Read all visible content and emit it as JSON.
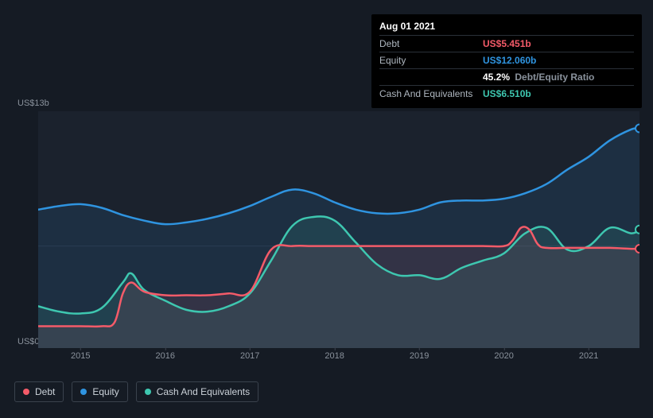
{
  "tooltip": {
    "date": "Aug 01 2021",
    "rows": [
      {
        "label": "Debt",
        "value": "US$5.451b",
        "color": "#f45b69"
      },
      {
        "label": "Equity",
        "value": "US$12.060b",
        "color": "#2f94e0"
      },
      {
        "label": "",
        "ratio_bold": "45.2%",
        "ratio_label": "Debt/Equity Ratio"
      },
      {
        "label": "Cash And Equivalents",
        "value": "US$6.510b",
        "color": "#3ec7b0"
      }
    ]
  },
  "y_axis": {
    "top_label": "US$13b",
    "bottom_label": "US$0"
  },
  "chart": {
    "background": "#1b222d",
    "x_domain": [
      2014.5,
      2021.6
    ],
    "y_domain": [
      0,
      13
    ],
    "grid_color": "#2a3240",
    "series": {
      "equity": {
        "name": "Equity",
        "color": "#2f94e0",
        "fill": "#2f94e0",
        "fill_opacity": 0.12,
        "stroke_width": 2.5,
        "points": [
          [
            2014.5,
            7.6
          ],
          [
            2014.75,
            7.8
          ],
          [
            2015.0,
            7.9
          ],
          [
            2015.25,
            7.7
          ],
          [
            2015.5,
            7.3
          ],
          [
            2015.75,
            7.0
          ],
          [
            2016.0,
            6.8
          ],
          [
            2016.25,
            6.9
          ],
          [
            2016.5,
            7.1
          ],
          [
            2016.75,
            7.4
          ],
          [
            2017.0,
            7.8
          ],
          [
            2017.25,
            8.3
          ],
          [
            2017.5,
            8.7
          ],
          [
            2017.75,
            8.5
          ],
          [
            2018.0,
            8.0
          ],
          [
            2018.25,
            7.6
          ],
          [
            2018.5,
            7.4
          ],
          [
            2018.75,
            7.4
          ],
          [
            2019.0,
            7.6
          ],
          [
            2019.25,
            8.0
          ],
          [
            2019.5,
            8.1
          ],
          [
            2019.75,
            8.1
          ],
          [
            2020.0,
            8.2
          ],
          [
            2020.25,
            8.5
          ],
          [
            2020.5,
            9.0
          ],
          [
            2020.75,
            9.8
          ],
          [
            2021.0,
            10.5
          ],
          [
            2021.25,
            11.4
          ],
          [
            2021.5,
            12.0
          ],
          [
            2021.6,
            12.06
          ]
        ]
      },
      "cash": {
        "name": "Cash And Equivalents",
        "color": "#3ec7b0",
        "fill": "#3ec7b0",
        "fill_opacity": 0.12,
        "stroke_width": 2.5,
        "points": [
          [
            2014.5,
            2.3
          ],
          [
            2014.75,
            2.0
          ],
          [
            2015.0,
            1.9
          ],
          [
            2015.25,
            2.2
          ],
          [
            2015.5,
            3.6
          ],
          [
            2015.6,
            4.1
          ],
          [
            2015.75,
            3.2
          ],
          [
            2016.0,
            2.6
          ],
          [
            2016.25,
            2.1
          ],
          [
            2016.5,
            2.0
          ],
          [
            2016.75,
            2.3
          ],
          [
            2017.0,
            3.0
          ],
          [
            2017.25,
            4.8
          ],
          [
            2017.5,
            6.7
          ],
          [
            2017.75,
            7.2
          ],
          [
            2018.0,
            7.0
          ],
          [
            2018.25,
            5.8
          ],
          [
            2018.5,
            4.6
          ],
          [
            2018.75,
            4.0
          ],
          [
            2019.0,
            4.0
          ],
          [
            2019.25,
            3.8
          ],
          [
            2019.5,
            4.4
          ],
          [
            2019.75,
            4.8
          ],
          [
            2020.0,
            5.2
          ],
          [
            2020.25,
            6.3
          ],
          [
            2020.5,
            6.6
          ],
          [
            2020.75,
            5.4
          ],
          [
            2021.0,
            5.6
          ],
          [
            2021.25,
            6.6
          ],
          [
            2021.5,
            6.3
          ],
          [
            2021.6,
            6.51
          ]
        ]
      },
      "debt": {
        "name": "Debt",
        "color": "#f45b69",
        "fill": "#f45b69",
        "fill_opacity": 0.1,
        "stroke_width": 2.5,
        "points": [
          [
            2014.5,
            1.2
          ],
          [
            2014.75,
            1.2
          ],
          [
            2015.0,
            1.2
          ],
          [
            2015.25,
            1.2
          ],
          [
            2015.4,
            1.4
          ],
          [
            2015.5,
            3.0
          ],
          [
            2015.6,
            3.6
          ],
          [
            2015.75,
            3.1
          ],
          [
            2016.0,
            2.9
          ],
          [
            2016.25,
            2.9
          ],
          [
            2016.5,
            2.9
          ],
          [
            2016.75,
            3.0
          ],
          [
            2017.0,
            3.1
          ],
          [
            2017.25,
            5.4
          ],
          [
            2017.5,
            5.6
          ],
          [
            2017.75,
            5.6
          ],
          [
            2018.0,
            5.6
          ],
          [
            2018.25,
            5.6
          ],
          [
            2018.5,
            5.6
          ],
          [
            2018.75,
            5.6
          ],
          [
            2019.0,
            5.6
          ],
          [
            2019.25,
            5.6
          ],
          [
            2019.5,
            5.6
          ],
          [
            2019.75,
            5.6
          ],
          [
            2020.0,
            5.6
          ],
          [
            2020.1,
            5.9
          ],
          [
            2020.2,
            6.6
          ],
          [
            2020.3,
            6.5
          ],
          [
            2020.4,
            5.7
          ],
          [
            2020.5,
            5.5
          ],
          [
            2020.75,
            5.5
          ],
          [
            2021.0,
            5.5
          ],
          [
            2021.25,
            5.5
          ],
          [
            2021.5,
            5.45
          ],
          [
            2021.6,
            5.451
          ]
        ]
      }
    },
    "end_markers": [
      {
        "series": "equity",
        "color": "#2f94e0"
      },
      {
        "series": "cash",
        "color": "#3ec7b0"
      },
      {
        "series": "debt",
        "color": "#f45b69"
      }
    ]
  },
  "x_ticks": [
    {
      "label": "2015",
      "v": 2015
    },
    {
      "label": "2016",
      "v": 2016
    },
    {
      "label": "2017",
      "v": 2017
    },
    {
      "label": "2018",
      "v": 2018
    },
    {
      "label": "2019",
      "v": 2019
    },
    {
      "label": "2020",
      "v": 2020
    },
    {
      "label": "2021",
      "v": 2021
    }
  ],
  "legend": [
    {
      "label": "Debt",
      "color": "#f45b69"
    },
    {
      "label": "Equity",
      "color": "#2f94e0"
    },
    {
      "label": "Cash And Equivalents",
      "color": "#3ec7b0"
    }
  ]
}
